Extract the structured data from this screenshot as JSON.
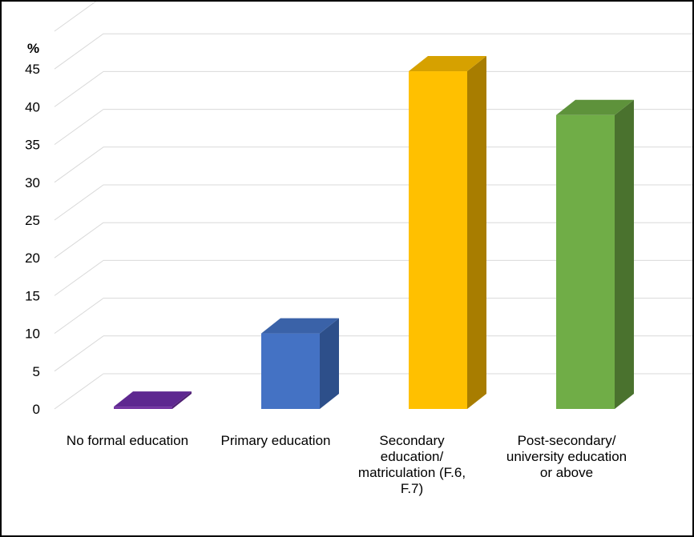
{
  "chart_data": {
    "type": "bar",
    "style": "3d-column",
    "title": "",
    "ylabel": "%",
    "xlabel": "",
    "ylim": [
      0,
      45
    ],
    "ytick_step": 5,
    "yticks": [
      "0",
      "5",
      "10",
      "15",
      "20",
      "25",
      "30",
      "35",
      "40",
      "45"
    ],
    "grid": true,
    "legend": "none",
    "categories": [
      "No formal education",
      "Primary education",
      "Secondary education/ matriculation (F.6, F.7)",
      "Post-secondary/ university education or above"
    ],
    "values": [
      0.3,
      10.0,
      44.7,
      38.9
    ],
    "colors": [
      {
        "front": "#7030A0",
        "side": "#4F1F73",
        "top": "#5E2890"
      },
      {
        "front": "#4472C4",
        "side": "#2D4F8A",
        "top": "#3A62A8"
      },
      {
        "front": "#FFC000",
        "side": "#A87D00",
        "top": "#D6A100"
      },
      {
        "front": "#70AD47",
        "side": "#4A722E",
        "top": "#5E923B"
      }
    ],
    "gridline_color": "#D9D9D9"
  }
}
